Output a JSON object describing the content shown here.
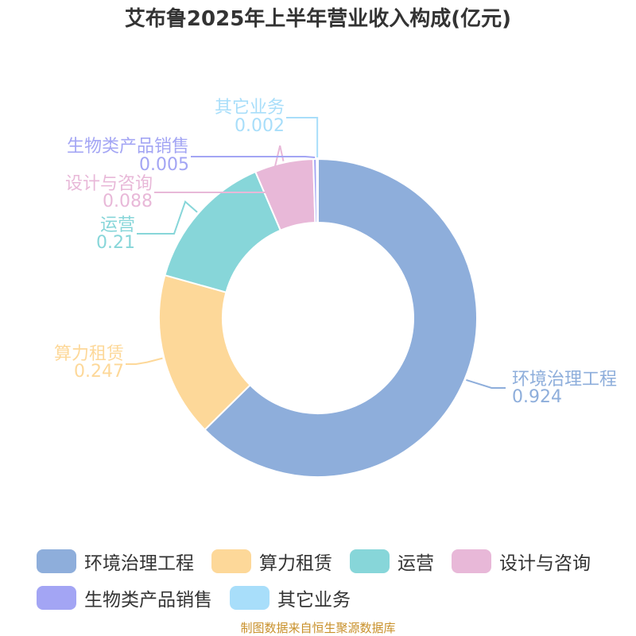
{
  "chart_data": {
    "type": "pie",
    "title": "艾布鲁2025年上半年营业收入构成(亿元)",
    "slices": [
      {
        "name": "环境治理工程",
        "value": 0.924,
        "value_label": "0.924",
        "color": "#8eaedb"
      },
      {
        "name": "算力租赁",
        "value": 0.247,
        "value_label": "0.247",
        "color": "#fdd899"
      },
      {
        "name": "运营",
        "value": 0.21,
        "value_label": "0.21",
        "color": "#87d6d9"
      },
      {
        "name": "设计与咨询",
        "value": 0.088,
        "value_label": "0.088",
        "color": "#e8b8d8"
      },
      {
        "name": "生物类产品销售",
        "value": 0.005,
        "value_label": "0.005",
        "color": "#a3a5f4"
      },
      {
        "name": "其它业务",
        "value": 0.002,
        "value_label": "0.002",
        "color": "#a8defa"
      }
    ],
    "donut": true,
    "legend_position": "bottom"
  },
  "source_text": "制图数据来自恒生聚源数据库",
  "colors": {
    "title": "#333333",
    "source": "#c8902a"
  }
}
